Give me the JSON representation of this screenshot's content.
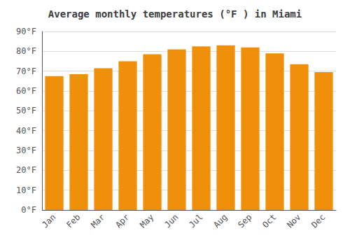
{
  "chart_data": {
    "type": "bar",
    "title": "Average monthly temperatures (°F ) in Miami",
    "categories": [
      "Jan",
      "Feb",
      "Mar",
      "Apr",
      "May",
      "Jun",
      "Jul",
      "Aug",
      "Sep",
      "Oct",
      "Nov",
      "Dec"
    ],
    "values": [
      67.5,
      68.5,
      71.5,
      75.0,
      78.5,
      81.0,
      82.5,
      83.0,
      82.0,
      79.0,
      73.5,
      69.5
    ],
    "color": "#F0900A",
    "ylim": [
      0,
      90
    ],
    "yticks": [
      {
        "value": 0,
        "label": "0°F"
      },
      {
        "value": 10,
        "label": "10°F"
      },
      {
        "value": 20,
        "label": "20°F"
      },
      {
        "value": 30,
        "label": "30°F"
      },
      {
        "value": 40,
        "label": "40°F"
      },
      {
        "value": 50,
        "label": "50°F"
      },
      {
        "value": 60,
        "label": "60°F"
      },
      {
        "value": 70,
        "label": "70°F"
      },
      {
        "value": 80,
        "label": "80°F"
      },
      {
        "value": 90,
        "label": "90°F"
      }
    ],
    "grid": true
  }
}
